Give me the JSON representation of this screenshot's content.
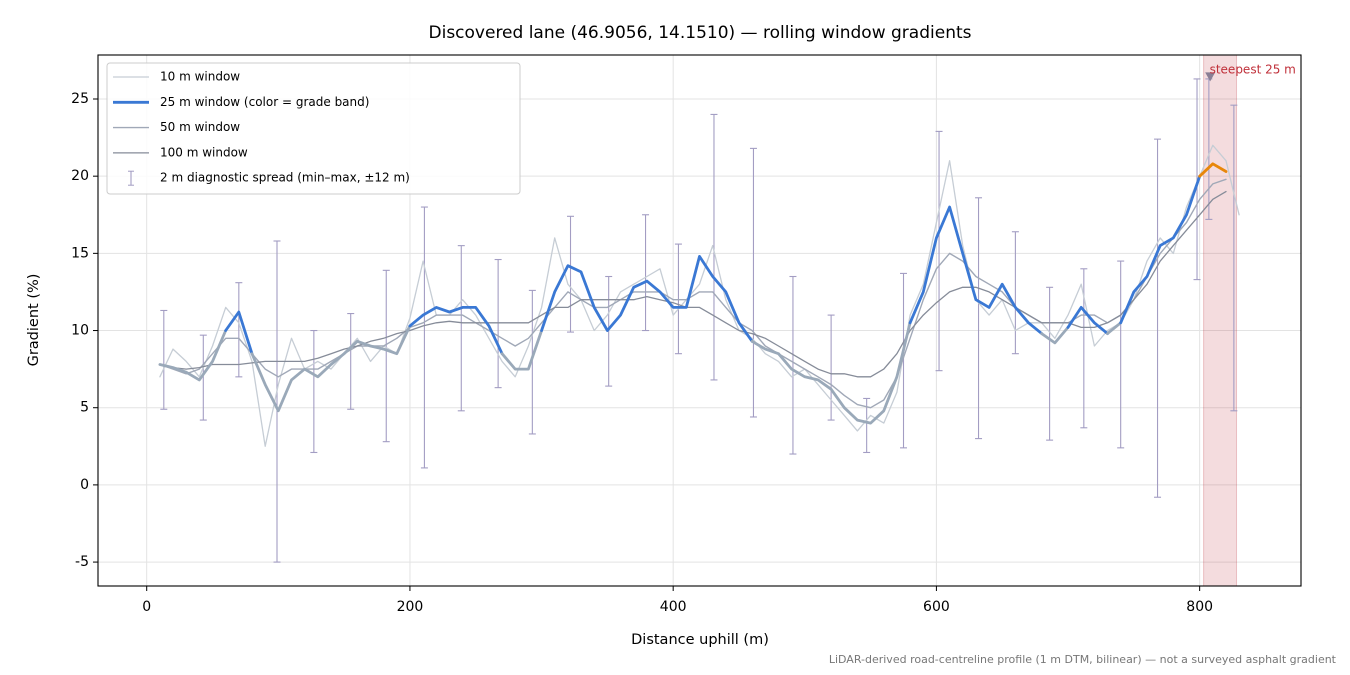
{
  "chart_data": {
    "type": "line",
    "title": "Discovered lane (46.9056, 14.1510) — rolling window gradients",
    "x_label": "Distance uphill (m)",
    "y_label": "Gradient (%)",
    "footnote": "LiDAR-derived road-centreline profile (1 m DTM, bilinear) — not a surveyed asphalt gradient",
    "xlim": [
      -37,
      877
    ],
    "ylim": [
      -6.55,
      27.85
    ],
    "xticks": [
      0,
      200,
      400,
      600,
      800
    ],
    "yticks": [
      -5,
      0,
      5,
      10,
      15,
      20,
      25
    ],
    "grid": true,
    "legend": "upper left",
    "x": [
      10,
      20,
      30,
      40,
      50,
      60,
      70,
      80,
      90,
      100,
      110,
      120,
      130,
      140,
      150,
      160,
      170,
      180,
      190,
      200,
      210,
      220,
      230,
      240,
      250,
      260,
      270,
      280,
      290,
      300,
      310,
      320,
      330,
      340,
      350,
      360,
      370,
      380,
      390,
      400,
      410,
      420,
      430,
      440,
      450,
      460,
      470,
      480,
      490,
      500,
      510,
      520,
      530,
      540,
      550,
      560,
      570,
      580,
      590,
      600,
      610,
      620,
      630,
      640,
      650,
      660,
      670,
      680,
      690,
      700,
      710,
      720,
      730,
      740,
      750,
      760,
      770,
      780,
      790,
      800,
      810,
      820,
      830
    ],
    "series": [
      {
        "name": "10 m window",
        "color": "#c6cdd5",
        "values": [
          7.0,
          8.8,
          8.0,
          7.0,
          9.0,
          11.5,
          10.5,
          8.0,
          2.5,
          6.5,
          9.5,
          7.5,
          8.0,
          7.5,
          8.5,
          9.5,
          8.0,
          9.0,
          8.5,
          10.8,
          14.5,
          11.0,
          11.0,
          12.0,
          11.0,
          9.5,
          8.0,
          7.0,
          9.0,
          11.5,
          16.0,
          13.0,
          12.0,
          10.0,
          11.0,
          12.5,
          13.0,
          13.5,
          14.0,
          11.0,
          12.0,
          13.0,
          15.5,
          12.0,
          10.0,
          9.5,
          8.5,
          8.0,
          7.0,
          7.5,
          6.5,
          5.5,
          4.5,
          3.5,
          4.5,
          4.0,
          6.0,
          11.0,
          13.0,
          17.0,
          21.0,
          15.5,
          12.0,
          11.0,
          12.0,
          10.0,
          10.5,
          10.5,
          9.5,
          11.0,
          13.0,
          9.0,
          10.0,
          10.5,
          12.0,
          14.5,
          16.0,
          15.0,
          18.0,
          20.0,
          22.0,
          21.0,
          17.5
        ]
      },
      {
        "name": "25 m window (color = grade band)",
        "color": "#3a78d4",
        "bands": [
          {
            "max": 10,
            "color": "#9aa9b9"
          },
          {
            "max": 20,
            "color": "#3a78d4"
          },
          {
            "color": "#e8870a"
          }
        ],
        "values": [
          7.8,
          7.6,
          7.3,
          6.8,
          8.0,
          10.0,
          11.2,
          8.5,
          6.5,
          4.8,
          6.8,
          7.5,
          7.0,
          7.8,
          8.5,
          9.3,
          9.0,
          8.8,
          8.5,
          10.3,
          11.0,
          11.5,
          11.2,
          11.5,
          11.5,
          10.3,
          8.5,
          7.5,
          7.5,
          10.0,
          12.5,
          14.2,
          13.8,
          11.5,
          10.0,
          11.0,
          12.8,
          13.2,
          12.5,
          11.5,
          11.5,
          14.8,
          13.5,
          12.5,
          10.5,
          9.3,
          8.8,
          8.5,
          7.5,
          7.0,
          6.8,
          6.2,
          5.0,
          4.2,
          4.0,
          4.8,
          7.0,
          10.5,
          12.5,
          16.0,
          18.0,
          15.0,
          12.0,
          11.5,
          13.0,
          11.5,
          10.5,
          9.8,
          9.2,
          10.2,
          11.5,
          10.5,
          9.8,
          10.5,
          12.5,
          13.5,
          15.5,
          16.0,
          17.5,
          20.0,
          20.8,
          20.3,
          null
        ]
      },
      {
        "name": "50 m window",
        "color": "#a0a8b7",
        "values": [
          7.8,
          7.5,
          7.2,
          7.5,
          8.5,
          9.5,
          9.5,
          8.5,
          7.5,
          7.0,
          7.5,
          7.5,
          7.5,
          8.0,
          8.5,
          9.0,
          9.0,
          9.0,
          9.5,
          10.2,
          10.5,
          11.0,
          11.0,
          11.0,
          10.5,
          10.0,
          9.5,
          9.0,
          9.5,
          10.5,
          11.5,
          12.5,
          12.0,
          11.5,
          11.5,
          12.0,
          12.5,
          12.5,
          12.5,
          12.0,
          12.0,
          12.5,
          12.5,
          11.5,
          10.5,
          10.0,
          9.0,
          8.5,
          8.0,
          7.5,
          7.0,
          6.5,
          5.8,
          5.2,
          5.0,
          5.5,
          7.0,
          9.5,
          12.0,
          14.0,
          15.0,
          14.5,
          13.5,
          13.0,
          12.5,
          11.5,
          11.0,
          10.5,
          10.5,
          10.5,
          11.0,
          11.0,
          10.5,
          11.0,
          12.0,
          13.5,
          15.0,
          16.0,
          17.0,
          18.5,
          19.5,
          19.8,
          null
        ]
      },
      {
        "name": "100 m window",
        "color": "#868c99",
        "values": [
          7.8,
          7.6,
          7.5,
          7.6,
          7.8,
          7.8,
          7.8,
          7.9,
          8.0,
          8.0,
          8.0,
          8.0,
          8.2,
          8.5,
          8.8,
          9.0,
          9.3,
          9.5,
          9.8,
          10.0,
          10.3,
          10.5,
          10.6,
          10.5,
          10.5,
          10.5,
          10.5,
          10.5,
          10.5,
          11.0,
          11.5,
          11.5,
          12.0,
          12.0,
          12.0,
          12.0,
          12.0,
          12.2,
          12.0,
          11.8,
          11.5,
          11.5,
          11.0,
          10.5,
          10.0,
          9.8,
          9.5,
          9.0,
          8.5,
          8.0,
          7.5,
          7.2,
          7.2,
          7.0,
          7.0,
          7.5,
          8.5,
          10.0,
          11.0,
          11.8,
          12.5,
          12.8,
          12.8,
          12.5,
          12.0,
          11.5,
          11.0,
          10.5,
          10.5,
          10.5,
          10.2,
          10.2,
          10.5,
          11.0,
          12.0,
          13.0,
          14.5,
          15.5,
          16.5,
          17.5,
          18.5,
          19.0,
          null
        ]
      }
    ],
    "errorbars": {
      "name": "2 m diagnostic spread (min–max, ±12 m)",
      "color": "#a39dc3",
      "x": [
        13,
        43,
        70,
        99,
        127,
        155,
        182,
        211,
        239,
        267,
        293,
        322,
        351,
        379,
        404,
        431,
        461,
        491,
        520,
        547,
        575,
        602,
        632,
        660,
        686,
        712,
        740,
        768,
        798,
        807,
        826
      ],
      "low": [
        4.9,
        4.2,
        7.0,
        -5.0,
        2.1,
        4.9,
        2.8,
        1.1,
        4.8,
        6.3,
        3.3,
        9.9,
        6.4,
        10.0,
        8.5,
        6.8,
        4.4,
        2.0,
        4.2,
        2.1,
        2.4,
        7.4,
        3.0,
        8.5,
        2.9,
        3.7,
        2.4,
        -0.8,
        13.3,
        17.2,
        4.8
      ],
      "high": [
        11.3,
        9.7,
        13.1,
        15.8,
        10.0,
        11.1,
        13.9,
        18.0,
        15.5,
        14.6,
        12.6,
        17.4,
        13.5,
        17.5,
        15.6,
        24.0,
        21.8,
        13.5,
        11.0,
        5.6,
        13.7,
        22.9,
        18.6,
        16.4,
        12.8,
        14.0,
        14.5,
        22.4,
        26.3,
        26.3,
        24.6
      ]
    },
    "highlight": {
      "label": "steepest 25 m",
      "xspan": [
        803,
        828
      ],
      "marker_x": 808,
      "marker_y": 26.4,
      "color": "#c0303a"
    }
  }
}
